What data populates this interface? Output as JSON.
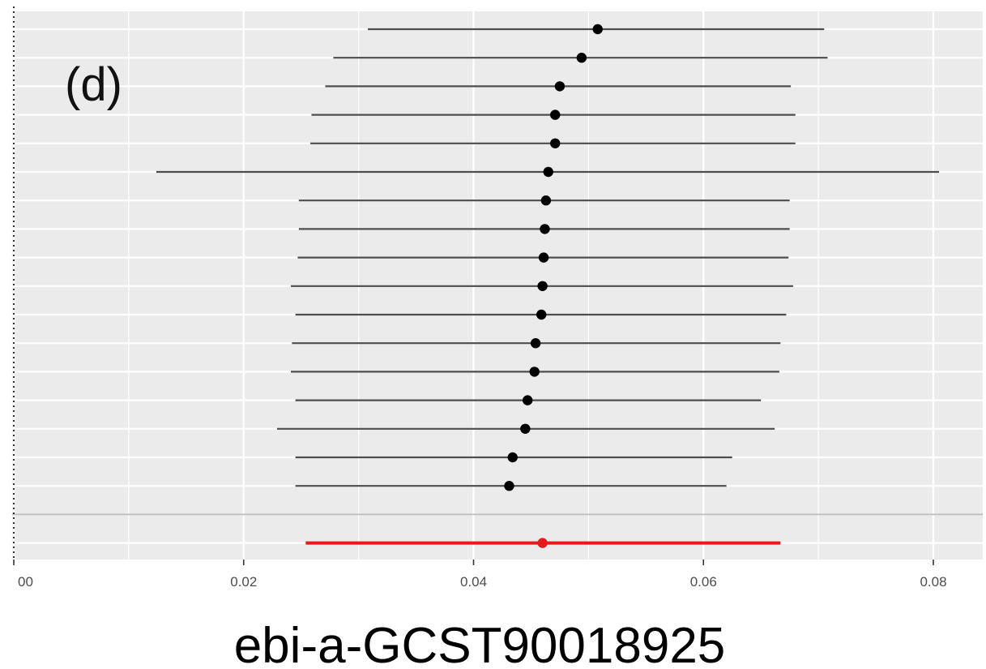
{
  "chart_data": {
    "type": "scatter",
    "subtype": "forest-plot",
    "panel_label": "(d)",
    "title": "",
    "xlabel": "ebi-a-GCST90018925",
    "ylabel": "",
    "xlim": [
      0.0,
      0.0845
    ],
    "x_ticks": [
      0.0,
      0.02,
      0.04,
      0.06,
      0.08
    ],
    "x_tick_labels": [
      "00",
      "0.02",
      "0.04",
      "0.06",
      "0.08"
    ],
    "grid": true,
    "legend": "none",
    "reference_line_x": 0.0,
    "series": [
      {
        "estimates": [
          {
            "x": 0.0508,
            "lo": 0.0308,
            "hi": 0.0705
          },
          {
            "x": 0.0494,
            "lo": 0.0278,
            "hi": 0.0708
          },
          {
            "x": 0.0475,
            "lo": 0.0271,
            "hi": 0.0676
          },
          {
            "x": 0.0471,
            "lo": 0.0259,
            "hi": 0.068
          },
          {
            "x": 0.0471,
            "lo": 0.0258,
            "hi": 0.068
          },
          {
            "x": 0.0465,
            "lo": 0.0124,
            "hi": 0.0805
          },
          {
            "x": 0.0463,
            "lo": 0.0248,
            "hi": 0.0675
          },
          {
            "x": 0.0462,
            "lo": 0.0248,
            "hi": 0.0675
          },
          {
            "x": 0.0461,
            "lo": 0.0247,
            "hi": 0.0674
          },
          {
            "x": 0.046,
            "lo": 0.0241,
            "hi": 0.0678
          },
          {
            "x": 0.0459,
            "lo": 0.0245,
            "hi": 0.0672
          },
          {
            "x": 0.0454,
            "lo": 0.0242,
            "hi": 0.0667
          },
          {
            "x": 0.0453,
            "lo": 0.0241,
            "hi": 0.0666
          },
          {
            "x": 0.0447,
            "lo": 0.0245,
            "hi": 0.065
          },
          {
            "x": 0.0445,
            "lo": 0.0229,
            "hi": 0.0662
          },
          {
            "x": 0.0434,
            "lo": 0.0245,
            "hi": 0.0625
          },
          {
            "x": 0.0431,
            "lo": 0.0245,
            "hi": 0.062
          }
        ]
      }
    ],
    "pooled": {
      "x": 0.046,
      "lo": 0.0254,
      "hi": 0.0667
    },
    "colors": {
      "panel_bg": "#ebebeb",
      "grid": "#ffffff",
      "estimate": "#000000",
      "interval": "#4d4d4d",
      "pooled": "#e41a1c",
      "separator": "#bdbdbd",
      "reference": "#000000"
    }
  }
}
